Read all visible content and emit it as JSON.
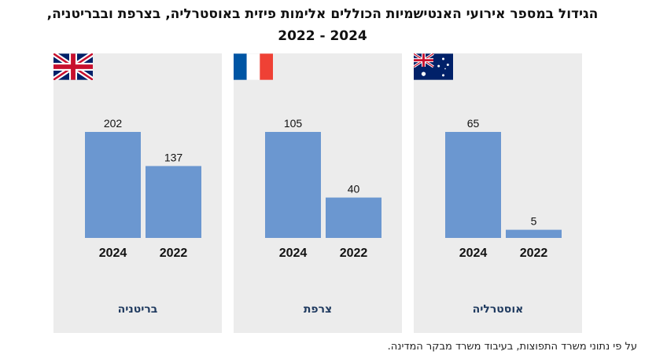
{
  "title": "הגידול במספר אירועי האנטישמיות הכוללים אלימות פיזית באוסטרליה, בצרפת ובבריטניה,",
  "subtitle": "2022 - 2024",
  "footnote": "על פי נתוני משרד התפוצות, בעיבוד משרד מבקר המדינה.",
  "colors": {
    "bar": "#6b97d0",
    "panel": "#ececec",
    "label": "#1f3a5f"
  },
  "chart_data": [
    {
      "type": "bar",
      "country": "בריטניה",
      "flag": "uk-flag-icon",
      "categories": [
        "2024",
        "2022"
      ],
      "values": [
        202,
        137
      ],
      "ylim": [
        0,
        202
      ]
    },
    {
      "type": "bar",
      "country": "צרפת",
      "flag": "france-flag-icon",
      "categories": [
        "2024",
        "2022"
      ],
      "values": [
        105,
        40
      ],
      "ylim": [
        0,
        105
      ]
    },
    {
      "type": "bar",
      "country": "אוסטרליה",
      "flag": "australia-flag-icon",
      "categories": [
        "2024",
        "2022"
      ],
      "values": [
        65,
        5
      ],
      "ylim": [
        0,
        65
      ]
    }
  ]
}
